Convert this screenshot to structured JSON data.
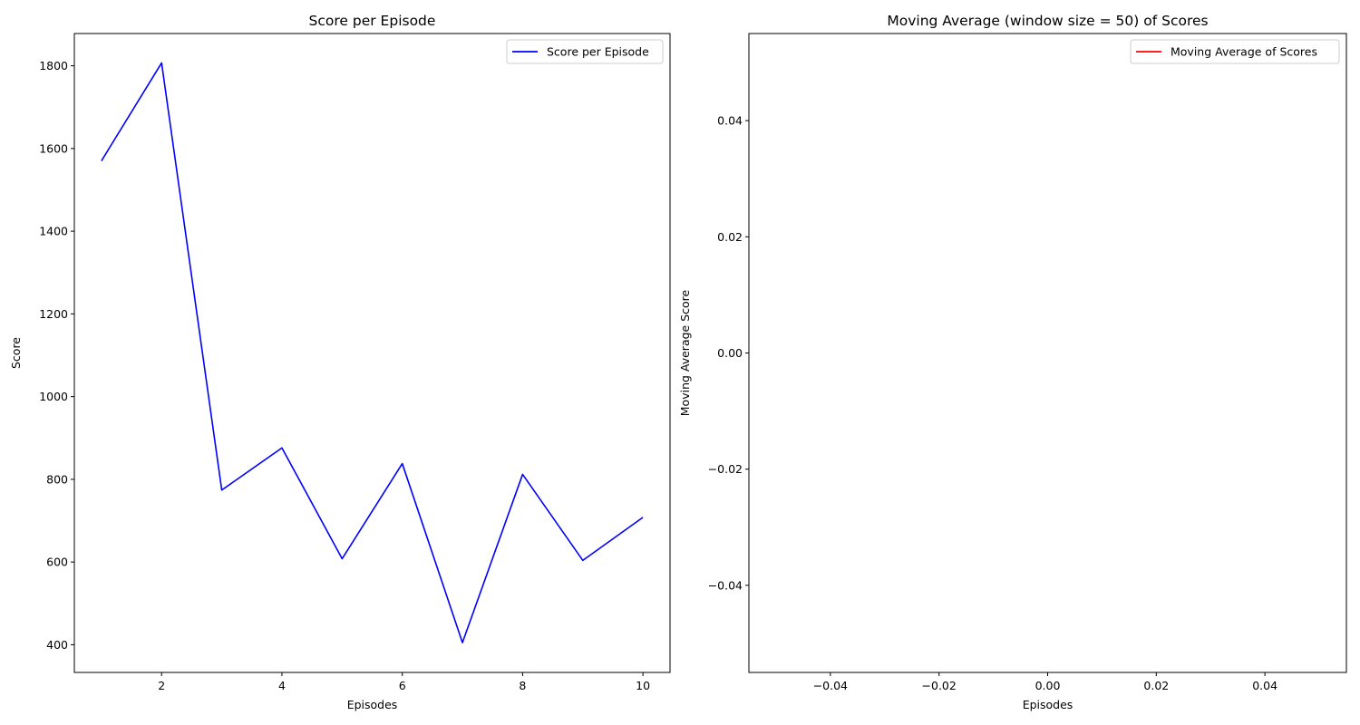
{
  "chart_data": [
    {
      "type": "line",
      "title": "Score per Episode",
      "xlabel": "Episodes",
      "ylabel": "Score",
      "xlim": [
        0.55,
        10.45
      ],
      "ylim": [
        333,
        1878
      ],
      "xticks": [
        2,
        4,
        6,
        8,
        10
      ],
      "xtick_labels": [
        "2",
        "4",
        "6",
        "8",
        "10"
      ],
      "yticks": [
        400,
        600,
        800,
        1000,
        1200,
        1400,
        1600,
        1800
      ],
      "ytick_labels": [
        "400",
        "600",
        "800",
        "1000",
        "1200",
        "1400",
        "1600",
        "1800"
      ],
      "grid": false,
      "legend_position": "upper right",
      "series": [
        {
          "name": "Score per Episode",
          "color": "#0000ff",
          "x": [
            1,
            2,
            3,
            4,
            5,
            6,
            7,
            8,
            9,
            10
          ],
          "y": [
            1570,
            1807,
            774,
            876,
            608,
            838,
            405,
            812,
            604,
            708
          ]
        }
      ]
    },
    {
      "type": "line",
      "title": "Moving Average (window size = 50) of Scores",
      "xlabel": "Episodes",
      "ylabel": "Moving Average Score",
      "xlim": [
        -0.055,
        0.055
      ],
      "ylim": [
        -0.055,
        0.055
      ],
      "xticks": [
        -0.04,
        -0.02,
        0.0,
        0.02,
        0.04
      ],
      "xtick_labels": [
        "−0.04",
        "−0.02",
        "0.00",
        "0.02",
        "0.04"
      ],
      "yticks": [
        -0.04,
        -0.02,
        0.0,
        0.02,
        0.04
      ],
      "ytick_labels": [
        "−0.04",
        "−0.02",
        "0.00",
        "0.02",
        "0.04"
      ],
      "grid": false,
      "legend_position": "upper right",
      "series": [
        {
          "name": "Moving Average of Scores",
          "color": "#ff0000",
          "x": [],
          "y": []
        }
      ]
    }
  ]
}
